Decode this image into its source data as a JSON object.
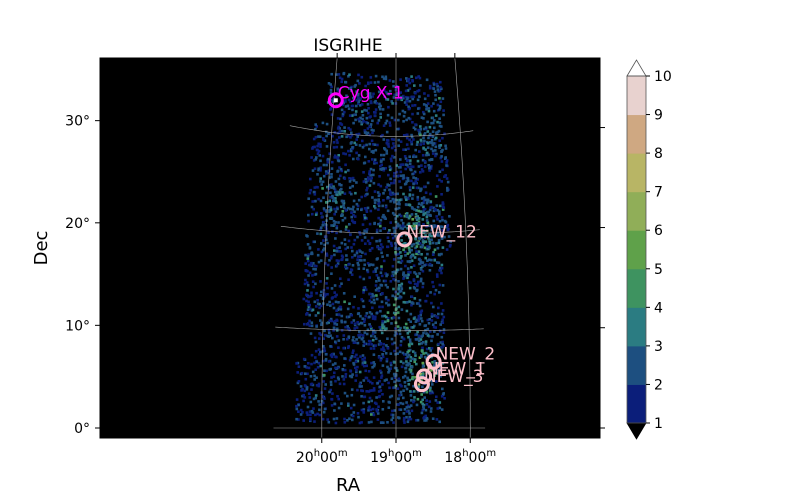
{
  "chart_data": {
    "type": "heatmap",
    "title": "ISGRIHE",
    "xlabel": "RA",
    "ylabel": "Dec",
    "x_ticks": [
      {
        "h": "20",
        "m": "00",
        "ra_hours": 20
      },
      {
        "h": "19",
        "m": "00",
        "ra_hours": 19
      },
      {
        "h": "18",
        "m": "00",
        "ra_hours": 18
      }
    ],
    "y_ticks": [
      {
        "label": "0°",
        "dec": 0
      },
      {
        "label": "10°",
        "dec": 10
      },
      {
        "label": "20°",
        "dec": 20
      },
      {
        "label": "30°",
        "dec": 30
      }
    ],
    "xlim_ra_hours": [
      20.5,
      17.97
    ],
    "ylim_dec": [
      -1,
      38
    ],
    "grid": true,
    "background": "#000000",
    "colorbar": {
      "min": 1,
      "max": 10,
      "ticks": [
        "1",
        "2",
        "3",
        "4",
        "5",
        "6",
        "7",
        "8",
        "9",
        "10"
      ],
      "colors": [
        "#0b1e7a",
        "#1d4f80",
        "#2b7c82",
        "#3e9360",
        "#5fa14a",
        "#90ae58",
        "#b8b565",
        "#cfa882",
        "#e8d2cf"
      ],
      "extend": "both"
    },
    "sources": [
      {
        "name": "Cyg X-1",
        "ra_hours": 19.97,
        "dec": 33.3,
        "color": "#ff00ff",
        "marker": "ring",
        "ring_color": "#ff00ff"
      },
      {
        "name": "NEW_12",
        "ra_hours": 18.88,
        "dec": 19.4,
        "color": "#ffc0cb",
        "marker": "ring",
        "ring_color": "#ffc0cb"
      },
      {
        "name": "NEW_2",
        "ra_hours": 18.49,
        "dec": 6.8,
        "color": "#ffc0cb",
        "marker": "ring",
        "ring_color": "#ffc0cb"
      },
      {
        "name": "NEW_1",
        "ra_hours": 18.62,
        "dec": 5.3,
        "color": "#ffc0cb",
        "marker": "ring",
        "ring_color": "#ffc0cb"
      },
      {
        "name": "NEW_3",
        "ra_hours": 18.65,
        "dec": 4.5,
        "color": "#ffc0cb",
        "marker": "ring",
        "ring_color": "#ffc0cb"
      }
    ]
  }
}
